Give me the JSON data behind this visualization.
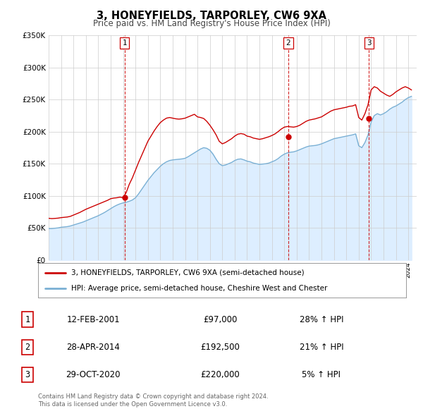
{
  "title": "3, HONEYFIELDS, TARPORLEY, CW6 9XA",
  "subtitle": "Price paid vs. HM Land Registry's House Price Index (HPI)",
  "ylim": [
    0,
    350000
  ],
  "yticks": [
    0,
    50000,
    100000,
    150000,
    200000,
    250000,
    300000,
    350000
  ],
  "xlim_start": 1995.0,
  "xlim_end": 2024.67,
  "sale_color": "#cc0000",
  "hpi_color": "#7ab0d4",
  "hpi_fill_color": "#ddeeff",
  "background_color": "#ffffff",
  "grid_color": "#cccccc",
  "legend_line1": "3, HONEYFIELDS, TARPORLEY, CW6 9XA (semi-detached house)",
  "legend_line2": "HPI: Average price, semi-detached house, Cheshire West and Chester",
  "transactions": [
    {
      "num": 1,
      "date_label": "12-FEB-2001",
      "year": 2001.12,
      "price": 97000,
      "pct": "28%",
      "direction": "↑"
    },
    {
      "num": 2,
      "date_label": "28-APR-2014",
      "year": 2014.32,
      "price": 192500,
      "pct": "21%",
      "direction": "↑"
    },
    {
      "num": 3,
      "date_label": "29-OCT-2020",
      "year": 2020.83,
      "price": 220000,
      "pct": "5%",
      "direction": "↑"
    }
  ],
  "footer_line1": "Contains HM Land Registry data © Crown copyright and database right 2024.",
  "footer_line2": "This data is licensed under the Open Government Licence v3.0.",
  "hpi_years": [
    1995.0,
    1995.25,
    1995.5,
    1995.75,
    1996.0,
    1996.25,
    1996.5,
    1996.75,
    1997.0,
    1997.25,
    1997.5,
    1997.75,
    1998.0,
    1998.25,
    1998.5,
    1998.75,
    1999.0,
    1999.25,
    1999.5,
    1999.75,
    2000.0,
    2000.25,
    2000.5,
    2000.75,
    2001.0,
    2001.25,
    2001.5,
    2001.75,
    2002.0,
    2002.25,
    2002.5,
    2002.75,
    2003.0,
    2003.25,
    2003.5,
    2003.75,
    2004.0,
    2004.25,
    2004.5,
    2004.75,
    2005.0,
    2005.25,
    2005.5,
    2005.75,
    2006.0,
    2006.25,
    2006.5,
    2006.75,
    2007.0,
    2007.25,
    2007.5,
    2007.75,
    2008.0,
    2008.25,
    2008.5,
    2008.75,
    2009.0,
    2009.25,
    2009.5,
    2009.75,
    2010.0,
    2010.25,
    2010.5,
    2010.75,
    2011.0,
    2011.25,
    2011.5,
    2011.75,
    2012.0,
    2012.25,
    2012.5,
    2012.75,
    2013.0,
    2013.25,
    2013.5,
    2013.75,
    2014.0,
    2014.25,
    2014.5,
    2014.75,
    2015.0,
    2015.25,
    2015.5,
    2015.75,
    2016.0,
    2016.25,
    2016.5,
    2016.75,
    2017.0,
    2017.25,
    2017.5,
    2017.75,
    2018.0,
    2018.25,
    2018.5,
    2018.75,
    2019.0,
    2019.25,
    2019.5,
    2019.75,
    2020.0,
    2020.25,
    2020.5,
    2020.75,
    2021.0,
    2021.25,
    2021.5,
    2021.75,
    2022.0,
    2022.25,
    2022.5,
    2022.75,
    2023.0,
    2023.25,
    2023.5,
    2023.75,
    2024.0,
    2024.25
  ],
  "hpi_values": [
    49000,
    49000,
    49500,
    50000,
    51000,
    51500,
    52000,
    53000,
    54500,
    56000,
    57500,
    59000,
    61000,
    63000,
    65000,
    67000,
    69000,
    71500,
    74000,
    77000,
    80000,
    83000,
    85500,
    87500,
    89000,
    90000,
    91500,
    93500,
    97000,
    103000,
    110000,
    117000,
    124000,
    130000,
    136000,
    141000,
    146000,
    150000,
    153000,
    155000,
    156000,
    156500,
    157000,
    157500,
    158500,
    161000,
    164000,
    167000,
    170000,
    173000,
    175000,
    174000,
    171000,
    165000,
    157000,
    150000,
    147000,
    148000,
    150000,
    152000,
    155000,
    157000,
    157500,
    156000,
    154000,
    153000,
    151000,
    150000,
    149000,
    149500,
    150000,
    151000,
    153000,
    155000,
    158000,
    162000,
    165000,
    167000,
    168000,
    168500,
    170000,
    172000,
    174000,
    176000,
    177500,
    178000,
    178500,
    179500,
    181000,
    183000,
    185000,
    187000,
    189000,
    190000,
    191000,
    192000,
    193000,
    194000,
    195000,
    196500,
    178000,
    175000,
    183000,
    195000,
    215000,
    225000,
    228000,
    226000,
    228000,
    231000,
    235000,
    238000,
    240000,
    243000,
    246000,
    250000,
    253000,
    255000
  ],
  "sale_years": [
    1995.0,
    1995.25,
    1995.5,
    1995.75,
    1996.0,
    1996.25,
    1996.5,
    1996.75,
    1997.0,
    1997.25,
    1997.5,
    1997.75,
    1998.0,
    1998.25,
    1998.5,
    1998.75,
    1999.0,
    1999.25,
    1999.5,
    1999.75,
    2000.0,
    2000.25,
    2000.5,
    2000.75,
    2001.0,
    2001.25,
    2001.5,
    2001.75,
    2002.0,
    2002.25,
    2002.5,
    2002.75,
    2003.0,
    2003.25,
    2003.5,
    2003.75,
    2004.0,
    2004.25,
    2004.5,
    2004.75,
    2005.0,
    2005.25,
    2005.5,
    2005.75,
    2006.0,
    2006.25,
    2006.5,
    2006.75,
    2007.0,
    2007.25,
    2007.5,
    2007.75,
    2008.0,
    2008.25,
    2008.5,
    2008.75,
    2009.0,
    2009.25,
    2009.5,
    2009.75,
    2010.0,
    2010.25,
    2010.5,
    2010.75,
    2011.0,
    2011.25,
    2011.5,
    2011.75,
    2012.0,
    2012.25,
    2012.5,
    2012.75,
    2013.0,
    2013.25,
    2013.5,
    2013.75,
    2014.0,
    2014.25,
    2014.5,
    2014.75,
    2015.0,
    2015.25,
    2015.5,
    2015.75,
    2016.0,
    2016.25,
    2016.5,
    2016.75,
    2017.0,
    2017.25,
    2017.5,
    2017.75,
    2018.0,
    2018.25,
    2018.5,
    2018.75,
    2019.0,
    2019.25,
    2019.5,
    2019.75,
    2020.0,
    2020.25,
    2020.5,
    2020.75,
    2021.0,
    2021.25,
    2021.5,
    2021.75,
    2022.0,
    2022.25,
    2022.5,
    2022.75,
    2023.0,
    2023.25,
    2023.5,
    2023.75,
    2024.0,
    2024.25
  ],
  "sale_values": [
    65000,
    64500,
    64800,
    65200,
    66000,
    66500,
    67000,
    68000,
    70000,
    72000,
    74000,
    76500,
    79000,
    81000,
    83000,
    85000,
    87000,
    89000,
    91000,
    93000,
    95500,
    96500,
    97000,
    98000,
    97000,
    105000,
    118000,
    128000,
    140000,
    152000,
    163000,
    174000,
    185000,
    193000,
    201000,
    208000,
    214000,
    218000,
    221000,
    222000,
    221000,
    220000,
    219500,
    220000,
    221000,
    223000,
    225000,
    227000,
    223000,
    222000,
    220500,
    216000,
    210000,
    203000,
    195000,
    185000,
    181000,
    183000,
    186000,
    189000,
    193000,
    196000,
    197000,
    196000,
    193000,
    192000,
    190000,
    189000,
    188000,
    189000,
    190500,
    192000,
    194000,
    196500,
    200000,
    204000,
    207000,
    208000,
    207500,
    207000,
    208000,
    210000,
    213000,
    216000,
    218000,
    219000,
    220000,
    221500,
    223000,
    226000,
    229000,
    232000,
    234000,
    235000,
    236000,
    237000,
    238000,
    239500,
    240000,
    242000,
    222000,
    218000,
    228000,
    242000,
    265000,
    270000,
    268000,
    263000,
    260000,
    257000,
    255000,
    258000,
    262000,
    265000,
    268000,
    270000,
    268000,
    265000
  ]
}
